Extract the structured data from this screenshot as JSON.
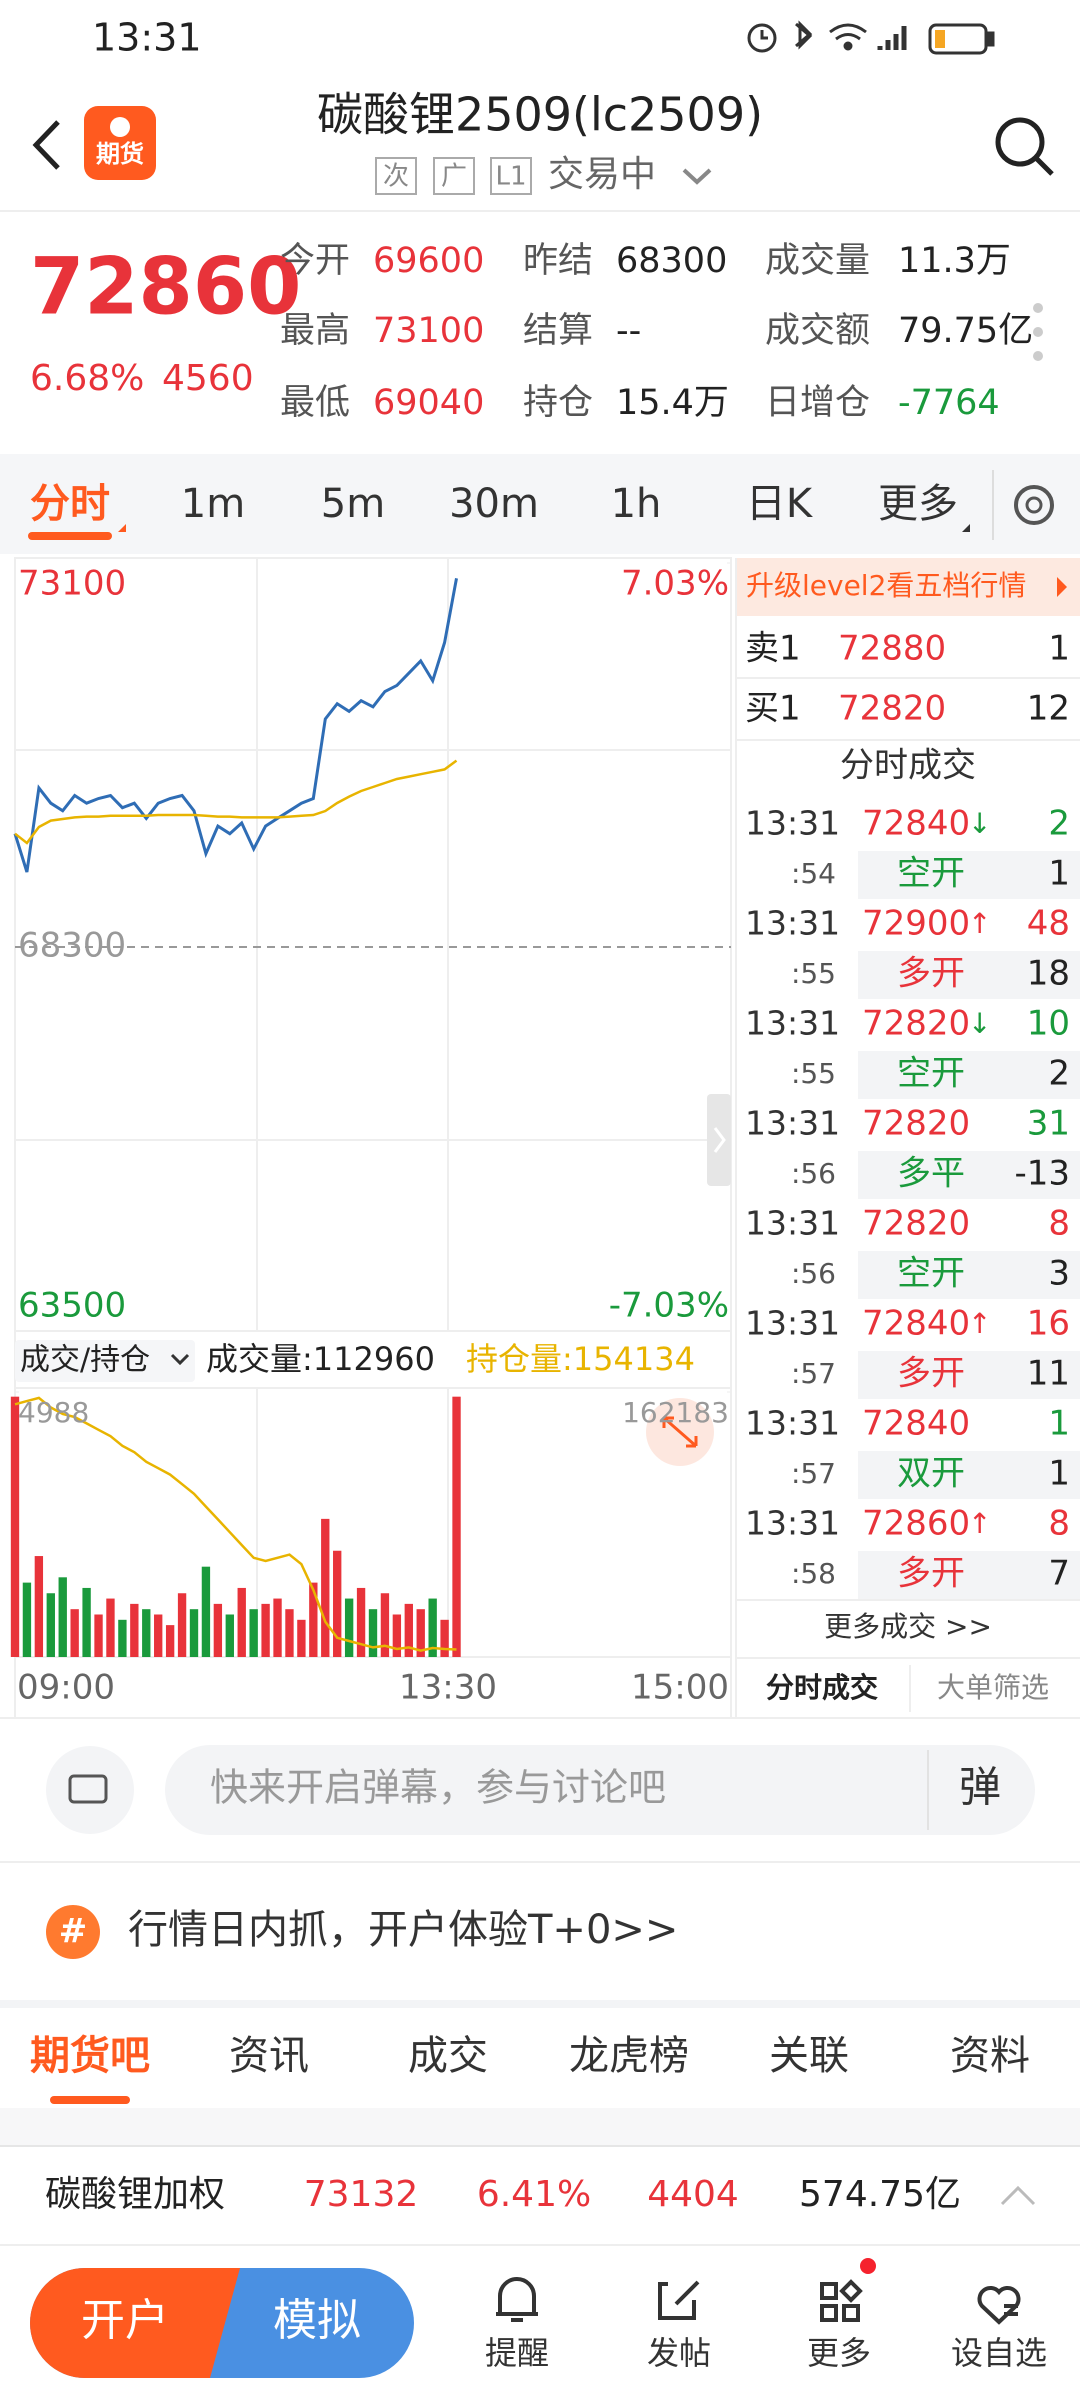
{
  "status_bar": {
    "time": "13:31"
  },
  "header": {
    "title": "碳酸锂2509(lc2509)",
    "logo": "期货",
    "badges": [
      "次",
      "广",
      "L1"
    ],
    "status": "交易中"
  },
  "quote": {
    "price": 72860,
    "change_pct": "6.68%",
    "change": 4560,
    "fields": [
      {
        "label": "今开",
        "value": "69600",
        "color": "#e8333a"
      },
      {
        "label": "昨结",
        "value": "68300",
        "color": "#222222"
      },
      {
        "label": "成交量",
        "value": "11.3万",
        "color": "#222222"
      },
      {
        "label": "最高",
        "value": "73100",
        "color": "#e8333a"
      },
      {
        "label": "结算",
        "value": "--",
        "color": "#222222"
      },
      {
        "label": "成交额",
        "value": "79.75亿",
        "color": "#222222"
      },
      {
        "label": "最低",
        "value": "69040",
        "color": "#e8333a"
      },
      {
        "label": "持仓",
        "value": "15.4万",
        "color": "#222222"
      },
      {
        "label": "日增仓",
        "value": "-7764",
        "color": "#1a9a3c"
      }
    ]
  },
  "periods": [
    "分时",
    "1m",
    "5m",
    "30m",
    "1h",
    "日K",
    "更多"
  ],
  "chart": {
    "type": "line",
    "ylim": [
      63500,
      73100
    ],
    "yticks": [
      73100,
      68300,
      63500
    ],
    "ytick_colors": [
      "#e8333a",
      "#999999",
      "#1a9a3c"
    ],
    "y2lim": [
      -7.03,
      7.03
    ],
    "y2ticks": [
      {
        "value": 7.03,
        "label": "7.03%"
      },
      {
        "value": -7.03,
        "label": "-7.03%"
      }
    ],
    "x_labels": [
      "09:00",
      "13:30",
      "15:00"
    ],
    "series": [
      {
        "color": "#2f6db5",
        "values": [
          69716,
          69238,
          70289,
          70098,
          70002,
          70194,
          70098,
          70156,
          70194,
          70041,
          70098,
          69907,
          70098,
          70156,
          70194,
          70002,
          69467,
          69811,
          69716,
          69850,
          69525,
          69811,
          69907,
          70002,
          70098,
          70156,
          71150,
          71341,
          71245,
          71379,
          71303,
          71494,
          71570,
          71723,
          71876,
          71628,
          72106,
          72909
        ]
      },
      {
        "color": "#e8b400",
        "values": [
          69716,
          69600,
          69800,
          69880,
          69900,
          69920,
          69930,
          69930,
          69940,
          69940,
          69940,
          69940,
          69950,
          69950,
          69950,
          69950,
          69940,
          69930,
          69930,
          69920,
          69920,
          69920,
          69920,
          69930,
          69940,
          69950,
          70000,
          70100,
          70180,
          70250,
          70300,
          70350,
          70400,
          70430,
          70460,
          70490,
          70520,
          70630
        ]
      }
    ]
  },
  "volume": {
    "selector": "成交/持仓",
    "volume_label": "成交量:112960",
    "hold_label": "持仓量:154134",
    "ylim": [
      0,
      4988
    ],
    "yticks": [
      4988
    ],
    "y2lim": [
      153900,
      162183
    ],
    "y2ticks": [
      162183
    ],
    "up_color": "#e8333a",
    "down_color": "#1a9a3c",
    "hold_color": "#e8b400",
    "values": [
      4900,
      1400,
      1900,
      1200,
      1500,
      900,
      1300,
      800,
      1100,
      700,
      1000,
      900,
      800,
      600,
      1200,
      900,
      1700,
      1000,
      800,
      1300,
      900,
      1000,
      1100,
      900,
      700,
      1400,
      2600,
      2000,
      1100,
      1300,
      900,
      1200,
      800,
      1000,
      900,
      1100,
      700,
      4900
    ],
    "hold": [
      161800,
      161900,
      162000,
      161700,
      161500,
      161400,
      161200,
      161000,
      160800,
      160500,
      160300,
      160000,
      159800,
      159600,
      159300,
      159000,
      158600,
      158200,
      157800,
      157400,
      157000,
      156900,
      157000,
      157100,
      156800,
      156000,
      155000,
      154500,
      154400,
      154300,
      154200,
      154250,
      154150,
      154200,
      154100,
      154180,
      154150,
      154134
    ]
  },
  "book": {
    "banner": "升级level2看五档行情",
    "rows": [
      {
        "label": "卖1",
        "price": "72880",
        "qty": "1"
      },
      {
        "label": "买1",
        "price": "72820",
        "qty": "12"
      }
    ]
  },
  "trades": {
    "title": "分时成交",
    "items": [
      {
        "time": "13:31",
        "sec": ":54",
        "price": "72840",
        "arrow": "↓",
        "qty": "2",
        "qty_color": "#1a9a3c",
        "type": "空开",
        "type_color": "#1a9a3c",
        "delta": "1"
      },
      {
        "time": "13:31",
        "sec": ":55",
        "price": "72900",
        "arrow": "↑",
        "qty": "48",
        "qty_color": "#e8333a",
        "type": "多开",
        "type_color": "#e8333a",
        "delta": "18"
      },
      {
        "time": "13:31",
        "sec": ":55",
        "price": "72820",
        "arrow": "↓",
        "qty": "10",
        "qty_color": "#1a9a3c",
        "type": "空开",
        "type_color": "#1a9a3c",
        "delta": "2"
      },
      {
        "time": "13:31",
        "sec": ":56",
        "price": "72820",
        "arrow": null,
        "qty": "31",
        "qty_color": "#1a9a3c",
        "type": "多平",
        "type_color": "#1a9a3c",
        "delta": "-13"
      },
      {
        "time": "13:31",
        "sec": ":56",
        "price": "72820",
        "arrow": null,
        "qty": "8",
        "qty_color": "#e8333a",
        "type": "空开",
        "type_color": "#1a9a3c",
        "delta": "3"
      },
      {
        "time": "13:31",
        "sec": ":57",
        "price": "72840",
        "arrow": "↑",
        "qty": "16",
        "qty_color": "#e8333a",
        "type": "多开",
        "type_color": "#e8333a",
        "delta": "11"
      },
      {
        "time": "13:31",
        "sec": ":57",
        "price": "72840",
        "arrow": null,
        "qty": "1",
        "qty_color": "#1a9a3c",
        "type": "双开",
        "type_color": "#1a9a3c",
        "delta": "1"
      },
      {
        "time": "13:31",
        "sec": ":58",
        "price": "72860",
        "arrow": "↑",
        "qty": "8",
        "qty_color": "#e8333a",
        "type": "多开",
        "type_color": "#e8333a",
        "delta": "7"
      }
    ],
    "more": "更多成交 >>",
    "tabs": [
      "分时成交",
      "大单筛选"
    ]
  },
  "comment": {
    "placeholder": "快来开启弹幕，参与讨论吧",
    "button": "弹"
  },
  "promo": {
    "icon": "#",
    "text": "行情日内抓，开户体验T+0>>"
  },
  "section_tabs": [
    "期货吧",
    "资讯",
    "成交",
    "龙虎榜",
    "关联",
    "资料"
  ],
  "ticker": {
    "name": "碳酸锂加权",
    "price": "73132",
    "pct": "6.41%",
    "change": "4404",
    "amount": "574.75亿"
  },
  "nav": {
    "open": "开户",
    "sim": "模拟",
    "items": [
      "提醒",
      "发帖",
      "更多",
      "设自选"
    ]
  }
}
